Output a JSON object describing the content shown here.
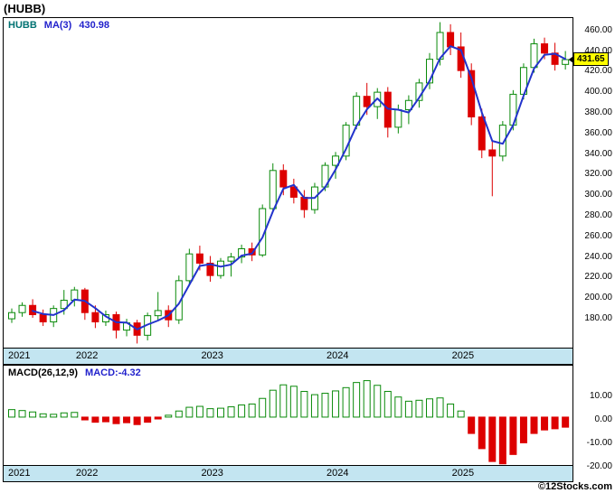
{
  "page": {
    "title": "(HUBB)",
    "copyright": "©12Stocks.com"
  },
  "legend": {
    "symbol": "HUBB",
    "ma_label": "MA(3)",
    "ma_value": "430.98"
  },
  "macd_legend": {
    "name": "MACD(26,12,9)",
    "value": "MACD:-4.32"
  },
  "price_tag": "431.65",
  "colors": {
    "up": "#0a8a0a",
    "up_fill": "#ffffff",
    "down": "#dd0000",
    "ma_line": "#2233cc",
    "symbol": "#007272",
    "blue_value": "#2222cc",
    "band_bg": "#c3e5f1",
    "tag_bg": "#ffff00"
  },
  "chart_data": {
    "main": {
      "type": "candlestick",
      "symbol": "HUBB",
      "overlay": "MA(3)",
      "interval": "monthly",
      "last_close": 431.65,
      "ylim": [
        152,
        472
      ],
      "y_ticks": [
        460,
        440,
        420,
        400,
        380,
        360,
        340,
        320,
        300,
        280,
        260,
        240,
        220,
        200,
        180
      ],
      "x_year_labels": [
        "2021",
        "2022",
        "2023",
        "2024",
        "2025"
      ],
      "x": [
        "2021-06",
        "2021-07",
        "2021-08",
        "2021-09",
        "2021-10",
        "2021-11",
        "2021-12",
        "2022-01",
        "2022-02",
        "2022-03",
        "2022-04",
        "2022-05",
        "2022-06",
        "2022-07",
        "2022-08",
        "2022-09",
        "2022-10",
        "2022-11",
        "2022-12",
        "2023-01",
        "2023-02",
        "2023-03",
        "2023-04",
        "2023-05",
        "2023-06",
        "2023-07",
        "2023-08",
        "2023-09",
        "2023-10",
        "2023-11",
        "2023-12",
        "2024-01",
        "2024-02",
        "2024-03",
        "2024-04",
        "2024-05",
        "2024-06",
        "2024-07",
        "2024-08",
        "2024-09",
        "2024-10",
        "2024-11",
        "2024-12",
        "2025-01",
        "2025-02",
        "2025-03",
        "2025-04",
        "2025-05",
        "2025-06",
        "2025-07",
        "2025-08",
        "2025-09",
        "2025-10",
        "2025-11"
      ],
      "open": [
        180,
        186,
        193,
        184,
        177,
        190,
        198,
        208,
        186,
        177,
        184,
        169,
        176,
        164,
        183,
        188,
        179,
        217,
        243,
        234,
        222,
        236,
        240,
        248,
        242,
        287,
        324,
        308,
        298,
        286,
        308,
        329,
        338,
        368,
        396,
        386,
        400,
        366,
        383,
        392,
        409,
        432,
        458,
        444,
        421,
        376,
        344,
        338,
        368,
        398,
        424,
        447,
        438,
        427
      ],
      "high": [
        190,
        196,
        199,
        189,
        193,
        208,
        211,
        210,
        193,
        188,
        187,
        180,
        179,
        186,
        206,
        193,
        222,
        248,
        251,
        241,
        239,
        244,
        252,
        254,
        291,
        331,
        330,
        316,
        305,
        312,
        332,
        342,
        371,
        400,
        409,
        404,
        405,
        388,
        397,
        413,
        438,
        468,
        466,
        458,
        428,
        384,
        352,
        372,
        402,
        428,
        452,
        453,
        448,
        440
      ],
      "low": [
        176,
        182,
        181,
        173,
        172,
        184,
        192,
        179,
        171,
        173,
        161,
        163,
        156,
        159,
        178,
        172,
        175,
        213,
        227,
        216,
        219,
        221,
        234,
        236,
        240,
        284,
        300,
        292,
        278,
        282,
        304,
        316,
        334,
        364,
        378,
        374,
        356,
        360,
        369,
        385,
        403,
        426,
        436,
        414,
        368,
        336,
        299,
        333,
        363,
        393,
        419,
        432,
        421,
        422
      ],
      "close": [
        186,
        193,
        184,
        177,
        190,
        198,
        208,
        186,
        177,
        184,
        169,
        176,
        164,
        183,
        188,
        179,
        217,
        243,
        234,
        222,
        236,
        240,
        248,
        242,
        287,
        324,
        308,
        298,
        286,
        308,
        329,
        338,
        368,
        396,
        386,
        400,
        366,
        383,
        392,
        409,
        432,
        458,
        444,
        421,
        376,
        344,
        338,
        368,
        398,
        424,
        447,
        438,
        427,
        431.65
      ]
    },
    "macd": {
      "type": "bar",
      "name": "MACD(26,12,9)",
      "last_value": -4.32,
      "ylim": [
        -20.5,
        22
      ],
      "y_ticks": [
        10,
        0,
        -10,
        -20
      ],
      "values": [
        3.2,
        2.8,
        2.2,
        1.4,
        1.2,
        1.8,
        2.0,
        -1.2,
        -2.2,
        -2.0,
        -2.8,
        -2.4,
        -3.2,
        -2.2,
        -0.8,
        0.8,
        2.6,
        4.2,
        4.6,
        3.6,
        3.8,
        4.4,
        5.2,
        5.6,
        8.0,
        11.5,
        13.8,
        13.2,
        11.0,
        9.6,
        10.2,
        11.2,
        12.6,
        14.8,
        15.6,
        13.6,
        11.0,
        8.6,
        6.8,
        7.2,
        7.8,
        8.2,
        5.6,
        2.6,
        -7.0,
        -13.5,
        -19.0,
        -20.0,
        -16.0,
        -11.0,
        -7.0,
        -5.5,
        -5.0,
        -4.32
      ]
    }
  }
}
